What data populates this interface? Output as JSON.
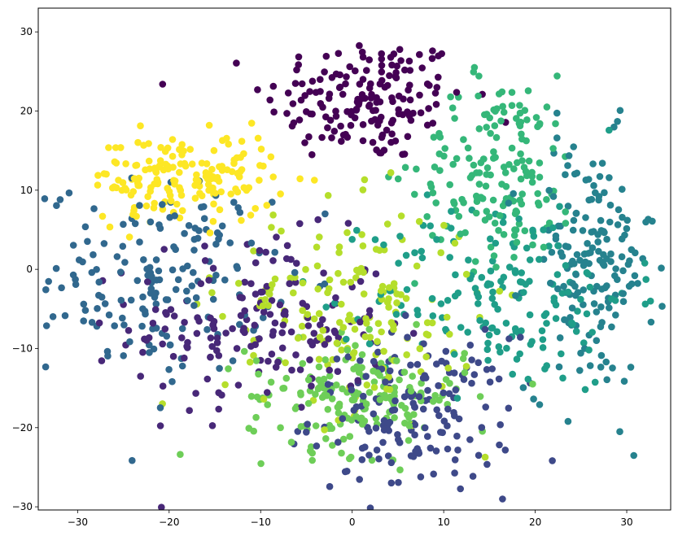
{
  "chart_data": {
    "type": "scatter",
    "title": "",
    "xlabel": "",
    "ylabel": "",
    "xlim": [
      -34.3,
      34.8
    ],
    "ylim": [
      -30.4,
      33.0
    ],
    "xticks": [
      -30,
      -20,
      -10,
      0,
      10,
      20,
      30
    ],
    "yticks": [
      -30,
      -20,
      -10,
      0,
      10,
      20,
      30
    ],
    "grid": false,
    "legend": "none",
    "points_per_cluster": 170,
    "colormap": "viridis",
    "series": [
      {
        "color": "#440154",
        "center": [
          1.5,
          21.5
        ],
        "spread": [
          5.5,
          4.0
        ]
      },
      {
        "color": "#482878",
        "center": [
          -10.0,
          -7.0
        ],
        "spread": [
          7.0,
          5.5
        ]
      },
      {
        "color": "#3e4989",
        "center": [
          6.5,
          -18.5
        ],
        "spread": [
          5.5,
          5.0
        ]
      },
      {
        "color": "#31688e",
        "center": [
          -21.0,
          -1.0
        ],
        "spread": [
          6.0,
          6.0
        ]
      },
      {
        "color": "#26828e",
        "center": [
          26.0,
          0.5
        ],
        "spread": [
          3.5,
          8.0
        ]
      },
      {
        "color": "#1f9e89",
        "center": [
          16.5,
          -3.0
        ],
        "spread": [
          7.0,
          6.0
        ]
      },
      {
        "color": "#35b779",
        "center": [
          16.0,
          12.5
        ],
        "spread": [
          4.5,
          6.0
        ]
      },
      {
        "color": "#6ece58",
        "center": [
          0.5,
          -16.0
        ],
        "spread": [
          6.0,
          3.5
        ]
      },
      {
        "color": "#b5de2b",
        "center": [
          0.0,
          -5.0
        ],
        "spread": [
          7.0,
          6.5
        ]
      },
      {
        "color": "#fde725",
        "center": [
          -18.5,
          11.5
        ],
        "spread": [
          5.0,
          2.8
        ]
      }
    ]
  }
}
